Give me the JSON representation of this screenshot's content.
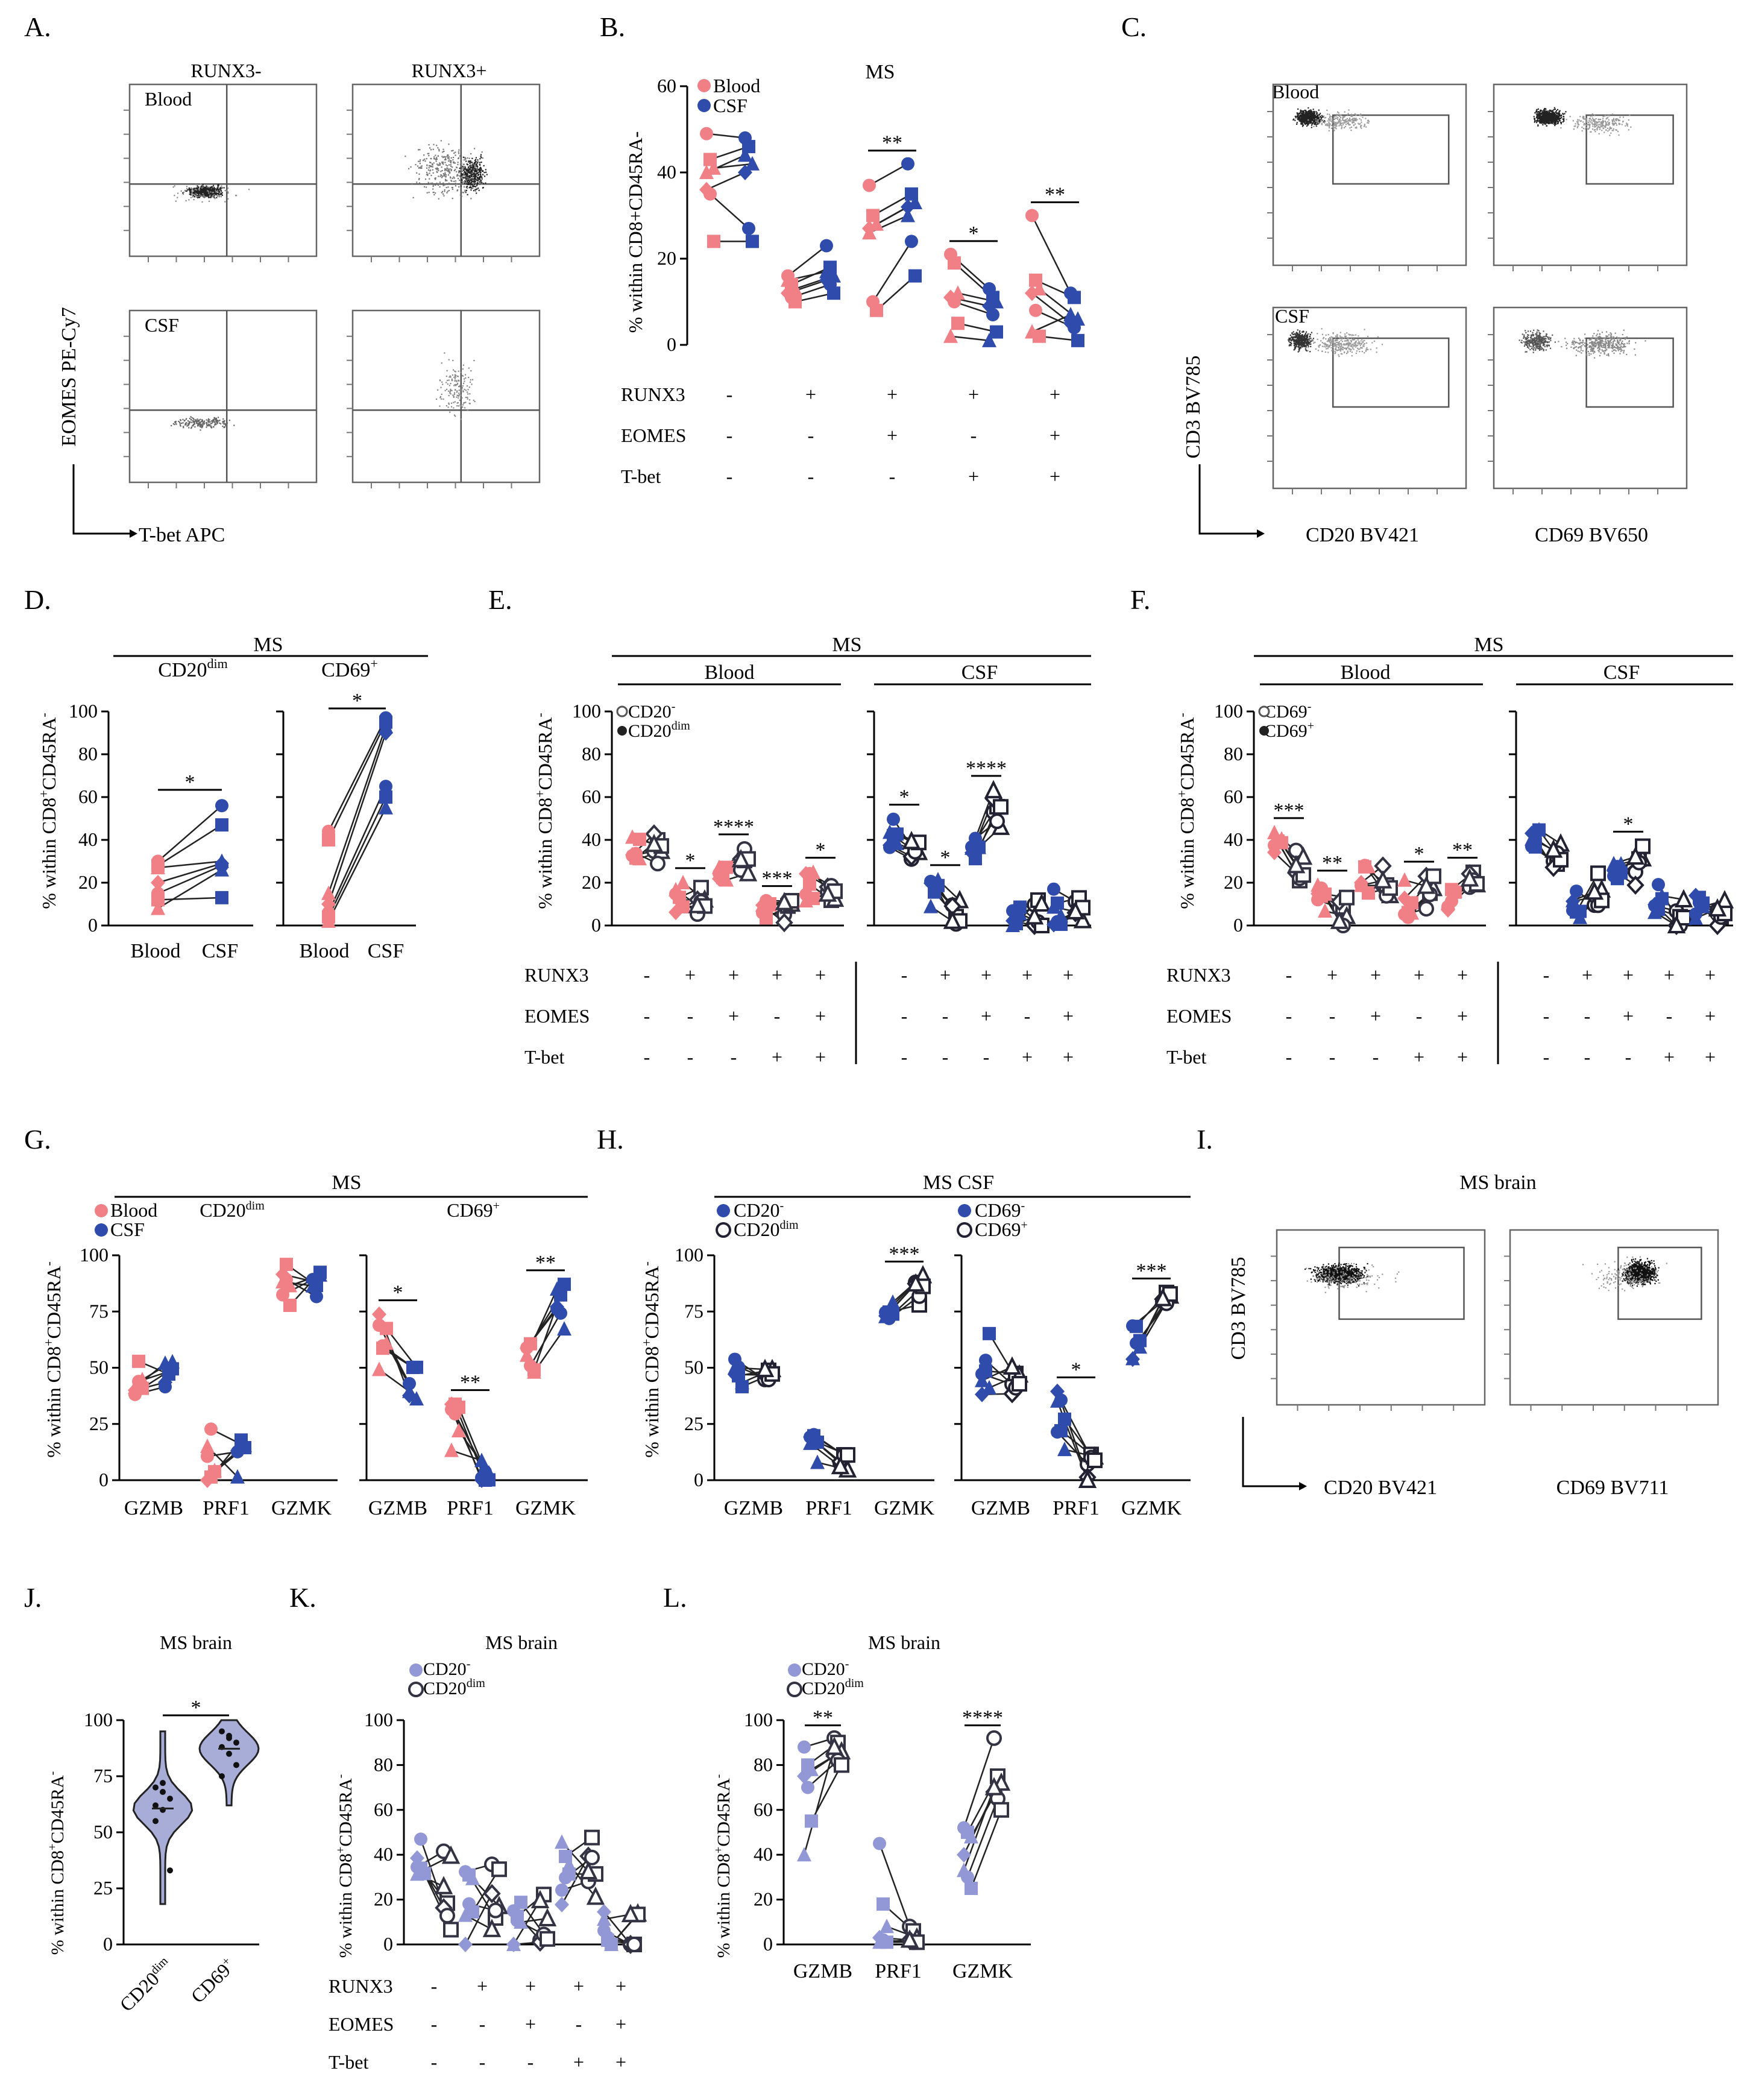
{
  "colors": {
    "blood": "#f07f86",
    "csf": "#2f4bab",
    "light": "#9298d6",
    "dark": "#333344",
    "black": "#000000"
  },
  "labels": {
    "A": "A.",
    "B": "B.",
    "C": "C.",
    "D": "D.",
    "E": "E.",
    "F": "F.",
    "G": "G.",
    "H": "H.",
    "I": "I.",
    "J": "J.",
    "K": "K.",
    "L": "L."
  },
  "text": {
    "runx3_minus": "RUNX3-",
    "runx3_plus": "RUNX3+",
    "blood": "Blood",
    "csf": "CSF",
    "ms": "MS",
    "ms_csf": "MS CSF",
    "ms_brain": "MS brain",
    "eomes_axis": "EOMES PE-Cy7",
    "tbet_axis": "T-bet APC",
    "cd3_bv785": "CD3 BV785",
    "cd20_bv421": "CD20 BV421",
    "cd69_bv650": "CD69 BV650",
    "cd69_bv711": "CD69 BV711",
    "ylab_b": "% within CD8+CD45RA-",
    "ylab_sup": "% within CD8",
    "ylab_sup2": "CD45RA",
    "runx3": "RUNX3",
    "eomes": "EOMES",
    "tbet": "T-bet",
    "cd20dim": "CD20",
    "dim": "dim",
    "cd69plus": "CD69",
    "cd20minus": "CD20",
    "cd69minus": "CD69",
    "sup_plus": "+",
    "sup_minus": "-",
    "gzmb": "GZMB",
    "prf1": "PRF1",
    "gzmk": "GZMK",
    "s1": "*",
    "s2": "**",
    "s3": "***",
    "s4": "****"
  },
  "chart_data": [
    {
      "panel": "B",
      "type": "scatter",
      "title": "MS",
      "ylabel": "% within CD8+CD45RA-",
      "ylim": [
        0,
        60
      ],
      "yticks": [
        0,
        20,
        40,
        60
      ],
      "legend": [
        "Blood",
        "CSF"
      ],
      "categories": [
        "RUNX3-",
        "RUNX3+EOMES-T-bet-",
        "RUNX3+EOMES+T-bet-",
        "RUNX3+EOMES-T-bet+",
        "RUNX3+EOMES+T-bet+"
      ],
      "series": [
        {
          "name": "Blood",
          "values": [
            [
              49,
              43,
              41,
              36,
              35,
              24,
              40
            ],
            [
              16,
              14,
              13,
              12,
              11,
              10,
              15
            ],
            [
              37,
              30,
              28,
              27,
              10,
              8,
              26
            ],
            [
              21,
              19,
              12,
              11,
              10,
              5,
              2
            ],
            [
              30,
              15,
              13,
              12,
              8,
              2,
              3
            ]
          ]
        },
        {
          "name": "CSF",
          "values": [
            [
              48,
              46,
              42,
              40,
              27,
              24,
              44
            ],
            [
              23,
              18,
              16,
              15,
              14,
              12,
              17
            ],
            [
              42,
              35,
              33,
              32,
              24,
              16,
              30
            ],
            [
              13,
              11,
              10,
              9,
              7,
              3,
              1
            ],
            [
              12,
              11,
              6,
              5,
              4,
              1,
              7
            ]
          ]
        }
      ],
      "significance": [
        "",
        "",
        "**",
        "*",
        "**"
      ]
    },
    {
      "panel": "D",
      "type": "scatter",
      "title": "MS",
      "ylim": [
        0,
        100
      ],
      "yticks": [
        0,
        20,
        40,
        60,
        80,
        100
      ],
      "subpanels": [
        {
          "title": "CD20dim",
          "categories": [
            "Blood",
            "CSF"
          ],
          "blood": [
            30,
            28,
            27,
            20,
            15,
            12,
            8
          ],
          "csf": [
            56,
            47,
            30,
            29,
            28,
            13,
            26
          ],
          "significance": "*"
        },
        {
          "title": "CD69+",
          "categories": [
            "Blood",
            "CSF"
          ],
          "blood": [
            44,
            40,
            15,
            10,
            6,
            4,
            2
          ],
          "csf": [
            97,
            95,
            93,
            90,
            65,
            60,
            55
          ],
          "significance": "*"
        }
      ]
    },
    {
      "panel": "E",
      "type": "scatter",
      "title": "MS",
      "legend": [
        "CD20-",
        "CD20dim"
      ],
      "ylim": [
        0,
        100
      ],
      "groups": [
        "Blood",
        "CSF"
      ],
      "significance_blood": [
        "",
        "*",
        "****",
        "***",
        "*"
      ],
      "significance_csf": [
        "*",
        "*",
        "****",
        "",
        ""
      ]
    },
    {
      "panel": "F",
      "type": "scatter",
      "title": "MS",
      "legend": [
        "CD69-",
        "CD69+"
      ],
      "ylim": [
        0,
        100
      ],
      "groups": [
        "Blood",
        "CSF"
      ],
      "significance_blood": [
        "***",
        "**",
        "",
        "*",
        "**"
      ],
      "significance_csf": [
        "",
        "",
        "*",
        "",
        ""
      ]
    },
    {
      "panel": "G",
      "type": "scatter",
      "title": "MS",
      "legend": [
        "Blood",
        "CSF"
      ],
      "ylim": [
        0,
        100
      ],
      "yticks": [
        0,
        25,
        50,
        75,
        100
      ],
      "subpanels": [
        {
          "title": "CD20dim",
          "categories": [
            "GZMB",
            "PRF1",
            "GZMK"
          ],
          "significance": [
            "",
            "",
            ""
          ]
        },
        {
          "title": "CD69+",
          "categories": [
            "GZMB",
            "PRF1",
            "GZMK"
          ],
          "significance": [
            "*",
            "**",
            "**"
          ]
        }
      ]
    },
    {
      "panel": "H",
      "type": "scatter",
      "title": "MS CSF",
      "ylim": [
        0,
        100
      ],
      "yticks": [
        0,
        25,
        50,
        75,
        100
      ],
      "subpanels": [
        {
          "legend": [
            "CD20-",
            "CD20dim"
          ],
          "categories": [
            "GZMB",
            "PRF1",
            "GZMK"
          ],
          "significance": [
            "",
            "",
            "***"
          ]
        },
        {
          "legend": [
            "CD69-",
            "CD69+"
          ],
          "categories": [
            "GZMB",
            "PRF1",
            "GZMK"
          ],
          "significance": [
            "",
            "*",
            "***"
          ]
        }
      ]
    },
    {
      "panel": "J",
      "type": "violin",
      "title": "MS brain",
      "ylim": [
        0,
        100
      ],
      "yticks": [
        0,
        25,
        50,
        75,
        100
      ],
      "categories": [
        "CD20dim",
        "CD69+"
      ],
      "values": [
        [
          70,
          68,
          65,
          62,
          60,
          33,
          55,
          72
        ],
        [
          95,
          93,
          90,
          88,
          85,
          80,
          75,
          92
        ]
      ],
      "significance": "*"
    },
    {
      "panel": "K",
      "type": "scatter",
      "title": "MS brain",
      "legend": [
        "CD20-",
        "CD20dim"
      ],
      "ylim": [
        0,
        100
      ],
      "yticks": [
        0,
        20,
        40,
        60,
        80,
        100
      ]
    },
    {
      "panel": "L",
      "type": "scatter",
      "title": "MS brain",
      "legend": [
        "CD20-",
        "CD20dim"
      ],
      "ylim": [
        0,
        100
      ],
      "yticks": [
        0,
        20,
        40,
        60,
        80,
        100
      ],
      "categories": [
        "GZMB",
        "PRF1",
        "GZMK"
      ],
      "significance": [
        "**",
        "",
        "****"
      ]
    }
  ]
}
